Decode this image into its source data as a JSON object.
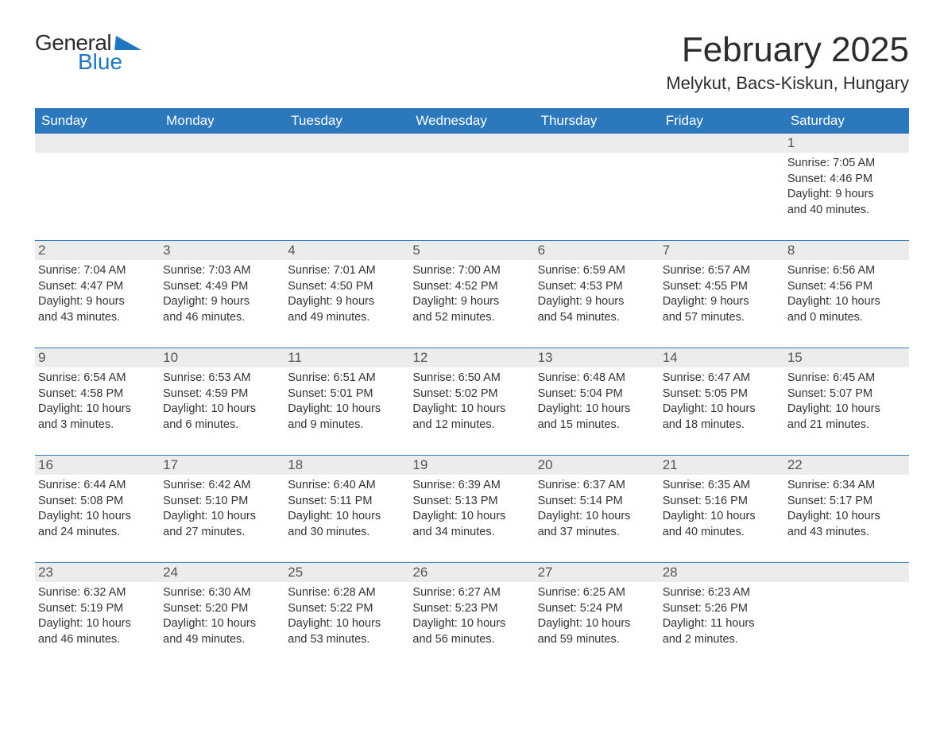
{
  "brand": {
    "word1": "General",
    "word2": "Blue"
  },
  "title": "February 2025",
  "location": "Melykut, Bacs-Kiskun, Hungary",
  "colors": {
    "header_bg": "#2b78bd",
    "header_text": "#ffffff",
    "band_bg": "#ececec",
    "rule": "#2b78bd",
    "body_text": "#333333",
    "brand_blue": "#1f77c2",
    "page_bg": "#ffffff"
  },
  "typography": {
    "title_fontsize_pt": 33,
    "location_fontsize_pt": 16,
    "weekday_fontsize_pt": 13,
    "daynum_fontsize_pt": 13,
    "body_fontsize_pt": 11,
    "font_family": "Segoe UI"
  },
  "weekdays": [
    "Sunday",
    "Monday",
    "Tuesday",
    "Wednesday",
    "Thursday",
    "Friday",
    "Saturday"
  ],
  "weeks": [
    [
      null,
      null,
      null,
      null,
      null,
      null,
      {
        "n": "1",
        "sunrise": "7:05 AM",
        "sunset": "4:46 PM",
        "dl_h": "9",
        "dl_m": "40"
      }
    ],
    [
      {
        "n": "2",
        "sunrise": "7:04 AM",
        "sunset": "4:47 PM",
        "dl_h": "9",
        "dl_m": "43"
      },
      {
        "n": "3",
        "sunrise": "7:03 AM",
        "sunset": "4:49 PM",
        "dl_h": "9",
        "dl_m": "46"
      },
      {
        "n": "4",
        "sunrise": "7:01 AM",
        "sunset": "4:50 PM",
        "dl_h": "9",
        "dl_m": "49"
      },
      {
        "n": "5",
        "sunrise": "7:00 AM",
        "sunset": "4:52 PM",
        "dl_h": "9",
        "dl_m": "52"
      },
      {
        "n": "6",
        "sunrise": "6:59 AM",
        "sunset": "4:53 PM",
        "dl_h": "9",
        "dl_m": "54"
      },
      {
        "n": "7",
        "sunrise": "6:57 AM",
        "sunset": "4:55 PM",
        "dl_h": "9",
        "dl_m": "57"
      },
      {
        "n": "8",
        "sunrise": "6:56 AM",
        "sunset": "4:56 PM",
        "dl_h": "10",
        "dl_m": "0"
      }
    ],
    [
      {
        "n": "9",
        "sunrise": "6:54 AM",
        "sunset": "4:58 PM",
        "dl_h": "10",
        "dl_m": "3"
      },
      {
        "n": "10",
        "sunrise": "6:53 AM",
        "sunset": "4:59 PM",
        "dl_h": "10",
        "dl_m": "6"
      },
      {
        "n": "11",
        "sunrise": "6:51 AM",
        "sunset": "5:01 PM",
        "dl_h": "10",
        "dl_m": "9"
      },
      {
        "n": "12",
        "sunrise": "6:50 AM",
        "sunset": "5:02 PM",
        "dl_h": "10",
        "dl_m": "12"
      },
      {
        "n": "13",
        "sunrise": "6:48 AM",
        "sunset": "5:04 PM",
        "dl_h": "10",
        "dl_m": "15"
      },
      {
        "n": "14",
        "sunrise": "6:47 AM",
        "sunset": "5:05 PM",
        "dl_h": "10",
        "dl_m": "18"
      },
      {
        "n": "15",
        "sunrise": "6:45 AM",
        "sunset": "5:07 PM",
        "dl_h": "10",
        "dl_m": "21"
      }
    ],
    [
      {
        "n": "16",
        "sunrise": "6:44 AM",
        "sunset": "5:08 PM",
        "dl_h": "10",
        "dl_m": "24"
      },
      {
        "n": "17",
        "sunrise": "6:42 AM",
        "sunset": "5:10 PM",
        "dl_h": "10",
        "dl_m": "27"
      },
      {
        "n": "18",
        "sunrise": "6:40 AM",
        "sunset": "5:11 PM",
        "dl_h": "10",
        "dl_m": "30"
      },
      {
        "n": "19",
        "sunrise": "6:39 AM",
        "sunset": "5:13 PM",
        "dl_h": "10",
        "dl_m": "34"
      },
      {
        "n": "20",
        "sunrise": "6:37 AM",
        "sunset": "5:14 PM",
        "dl_h": "10",
        "dl_m": "37"
      },
      {
        "n": "21",
        "sunrise": "6:35 AM",
        "sunset": "5:16 PM",
        "dl_h": "10",
        "dl_m": "40"
      },
      {
        "n": "22",
        "sunrise": "6:34 AM",
        "sunset": "5:17 PM",
        "dl_h": "10",
        "dl_m": "43"
      }
    ],
    [
      {
        "n": "23",
        "sunrise": "6:32 AM",
        "sunset": "5:19 PM",
        "dl_h": "10",
        "dl_m": "46"
      },
      {
        "n": "24",
        "sunrise": "6:30 AM",
        "sunset": "5:20 PM",
        "dl_h": "10",
        "dl_m": "49"
      },
      {
        "n": "25",
        "sunrise": "6:28 AM",
        "sunset": "5:22 PM",
        "dl_h": "10",
        "dl_m": "53"
      },
      {
        "n": "26",
        "sunrise": "6:27 AM",
        "sunset": "5:23 PM",
        "dl_h": "10",
        "dl_m": "56"
      },
      {
        "n": "27",
        "sunrise": "6:25 AM",
        "sunset": "5:24 PM",
        "dl_h": "10",
        "dl_m": "59"
      },
      {
        "n": "28",
        "sunrise": "6:23 AM",
        "sunset": "5:26 PM",
        "dl_h": "11",
        "dl_m": "2"
      },
      null
    ]
  ],
  "labels": {
    "sunrise_prefix": "Sunrise: ",
    "sunset_prefix": "Sunset: ",
    "daylight_prefix": "Daylight: ",
    "hours_word": " hours",
    "and_word": "and ",
    "minutes_word": " minutes."
  }
}
